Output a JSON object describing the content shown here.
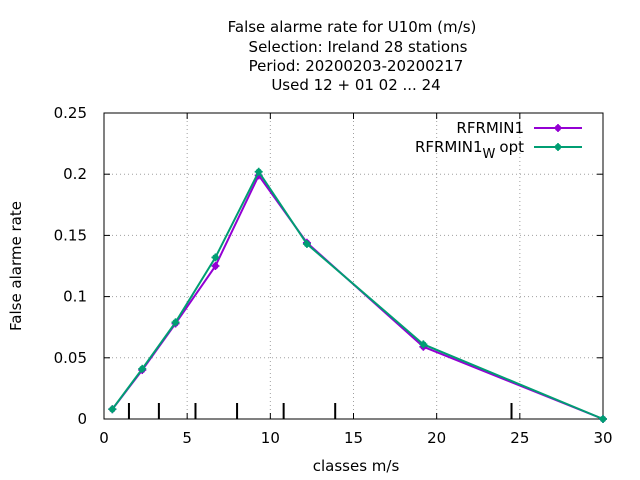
{
  "chart_data": {
    "type": "line",
    "title_lines": [
      "False alarme rate  for U10m (m/s)",
      "Selection: Ireland     28 stations",
      "Period: 20200203-20200217",
      "Used  12 + 01 02 ... 24"
    ],
    "xlabel": "classes m/s",
    "ylabel": "False alarme rate",
    "xlim": [
      0,
      30
    ],
    "ylim": [
      0,
      0.25
    ],
    "x_ticks": [
      "0",
      "5",
      "10",
      "15",
      "20",
      "25",
      "30"
    ],
    "y_ticks": [
      "0",
      "0.05",
      "0.1",
      "0.15",
      "0.2",
      "0.25"
    ],
    "grid": true,
    "legend_position": "top-right",
    "class_boundaries": [
      1.5,
      3.3,
      5.5,
      8,
      10.8,
      13.9,
      24.5
    ],
    "series": [
      {
        "name": "RFRMIN1",
        "color": "#9400d3",
        "x": [
          0.5,
          2.3,
          4.3,
          6.7,
          9.3,
          12.2,
          19.2,
          30
        ],
        "y": [
          0.008,
          0.04,
          0.078,
          0.125,
          0.199,
          0.144,
          0.059,
          0.0
        ]
      },
      {
        "name_main": "RFRMIN1",
        "name_sub": "W",
        "name_tail": "opt",
        "color": "#009e73",
        "x": [
          0.5,
          2.3,
          4.3,
          6.7,
          9.3,
          12.2,
          19.2,
          30
        ],
        "y": [
          0.008,
          0.041,
          0.079,
          0.132,
          0.202,
          0.143,
          0.061,
          0.0
        ]
      }
    ]
  }
}
